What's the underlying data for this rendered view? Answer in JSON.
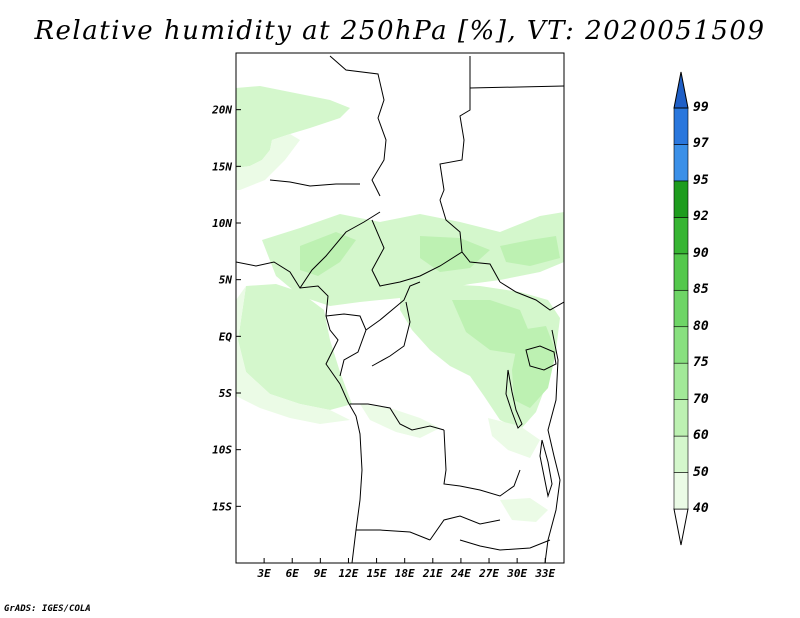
{
  "title": "Relative humidity at 250hPa [%], VT: 2020051509",
  "credit": "GrADS: IGES/COLA",
  "map": {
    "lon_range": [
      0,
      35
    ],
    "lat_range": [
      -20,
      25
    ],
    "lat_ticks": [
      {
        "value": 20,
        "label": "20N"
      },
      {
        "value": 15,
        "label": "15N"
      },
      {
        "value": 10,
        "label": "10N"
      },
      {
        "value": 5,
        "label": "5N"
      },
      {
        "value": 0,
        "label": "EQ"
      },
      {
        "value": -5,
        "label": "5S"
      },
      {
        "value": -10,
        "label": "10S"
      },
      {
        "value": -15,
        "label": "15S"
      }
    ],
    "lon_ticks": [
      {
        "value": 3,
        "label": "3E"
      },
      {
        "value": 6,
        "label": "6E"
      },
      {
        "value": 9,
        "label": "9E"
      },
      {
        "value": 12,
        "label": "12E"
      },
      {
        "value": 15,
        "label": "15E"
      },
      {
        "value": 18,
        "label": "18E"
      },
      {
        "value": 21,
        "label": "21E"
      },
      {
        "value": 24,
        "label": "24E"
      },
      {
        "value": 27,
        "label": "27E"
      },
      {
        "value": 30,
        "label": "30E"
      },
      {
        "value": 33,
        "label": "33E"
      }
    ]
  },
  "colorbar": {
    "levels": [
      "40",
      "50",
      "60",
      "70",
      "75",
      "80",
      "85",
      "90",
      "92",
      "95",
      "97",
      "99"
    ],
    "colors": [
      "#ebfbe6",
      "#d4f7cc",
      "#bdf1b2",
      "#a2e998",
      "#88e07f",
      "#6ed566",
      "#54c84c",
      "#37b533",
      "#1e9c1e",
      "#3b90e8",
      "#2a77dd",
      "#1f5fc6"
    ],
    "below_color": "#ffffff",
    "above_color": "#1f5fc6"
  }
}
